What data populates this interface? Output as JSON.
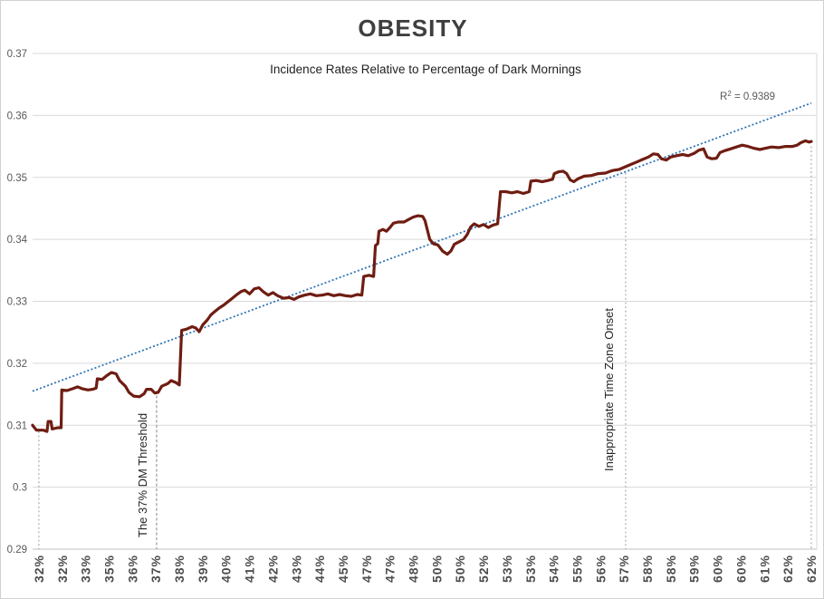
{
  "chart_data": {
    "type": "line",
    "title": "OBESITY",
    "subtitle": "Incidence Rates Relative to Percentage of Dark Mornings",
    "xlabel": "",
    "ylabel": "",
    "y_axis": {
      "min": 0.29,
      "max": 0.37,
      "step": 0.01,
      "tick_labels": [
        "0.29",
        "0.3",
        "0.31",
        "0.32",
        "0.33",
        "0.34",
        "0.35",
        "0.36",
        "0.37"
      ]
    },
    "x_axis": {
      "tick_labels": [
        "32%",
        "32%",
        "33%",
        "35%",
        "36%",
        "37%",
        "38%",
        "39%",
        "40%",
        "41%",
        "42%",
        "43%",
        "44%",
        "45%",
        "47%",
        "47%",
        "48%",
        "50%",
        "50%",
        "52%",
        "53%",
        "53%",
        "54%",
        "55%",
        "56%",
        "57%",
        "58%",
        "58%",
        "59%",
        "60%",
        "60%",
        "61%",
        "62%",
        "62%"
      ]
    },
    "grid": true,
    "legend": false,
    "series": [
      {
        "color": "#6F1D12",
        "points": [
          [
            -0.27,
            0.31
          ],
          [
            -0.1,
            0.3092
          ],
          [
            0.2,
            0.3092
          ],
          [
            0.35,
            0.309
          ],
          [
            0.4,
            0.3106
          ],
          [
            0.52,
            0.3106
          ],
          [
            0.57,
            0.3094
          ],
          [
            0.8,
            0.3096
          ],
          [
            0.95,
            0.3096
          ],
          [
            0.98,
            0.3157
          ],
          [
            1.2,
            0.3156
          ],
          [
            1.45,
            0.3159
          ],
          [
            1.65,
            0.3162
          ],
          [
            1.85,
            0.3159
          ],
          [
            2.1,
            0.3157
          ],
          [
            2.3,
            0.3158
          ],
          [
            2.45,
            0.316
          ],
          [
            2.5,
            0.3175
          ],
          [
            2.7,
            0.3174
          ],
          [
            2.9,
            0.318
          ],
          [
            3.1,
            0.3185
          ],
          [
            3.3,
            0.3183
          ],
          [
            3.45,
            0.3172
          ],
          [
            3.7,
            0.3163
          ],
          [
            3.85,
            0.3153
          ],
          [
            4.05,
            0.3147
          ],
          [
            4.3,
            0.3146
          ],
          [
            4.5,
            0.3151
          ],
          [
            4.6,
            0.3158
          ],
          [
            4.8,
            0.3158
          ],
          [
            4.95,
            0.3152
          ],
          [
            5.1,
            0.3153
          ],
          [
            5.25,
            0.3163
          ],
          [
            5.5,
            0.3167
          ],
          [
            5.65,
            0.3172
          ],
          [
            5.85,
            0.3169
          ],
          [
            6.0,
            0.3165
          ],
          [
            6.1,
            0.3253
          ],
          [
            6.3,
            0.3255
          ],
          [
            6.55,
            0.3259
          ],
          [
            6.7,
            0.3257
          ],
          [
            6.85,
            0.3251
          ],
          [
            7.0,
            0.3262
          ],
          [
            7.2,
            0.327
          ],
          [
            7.35,
            0.3278
          ],
          [
            7.5,
            0.3283
          ],
          [
            7.7,
            0.3289
          ],
          [
            7.9,
            0.3294
          ],
          [
            8.1,
            0.33
          ],
          [
            8.3,
            0.3306
          ],
          [
            8.5,
            0.3312
          ],
          [
            8.65,
            0.3316
          ],
          [
            8.8,
            0.3318
          ],
          [
            9.0,
            0.3312
          ],
          [
            9.2,
            0.332
          ],
          [
            9.4,
            0.3322
          ],
          [
            9.6,
            0.3315
          ],
          [
            9.8,
            0.331
          ],
          [
            10.0,
            0.3314
          ],
          [
            10.2,
            0.3309
          ],
          [
            10.45,
            0.3305
          ],
          [
            10.7,
            0.3306
          ],
          [
            10.9,
            0.3303
          ],
          [
            11.1,
            0.3307
          ],
          [
            11.35,
            0.331
          ],
          [
            11.6,
            0.3312
          ],
          [
            11.85,
            0.3309
          ],
          [
            12.1,
            0.331
          ],
          [
            12.35,
            0.3312
          ],
          [
            12.6,
            0.3309
          ],
          [
            12.85,
            0.3311
          ],
          [
            13.1,
            0.3309
          ],
          [
            13.35,
            0.3308
          ],
          [
            13.6,
            0.3311
          ],
          [
            13.8,
            0.331
          ],
          [
            13.88,
            0.334
          ],
          [
            14.1,
            0.3342
          ],
          [
            14.3,
            0.334
          ],
          [
            14.38,
            0.339
          ],
          [
            14.48,
            0.3393
          ],
          [
            14.53,
            0.3413
          ],
          [
            14.7,
            0.3416
          ],
          [
            14.85,
            0.3413
          ],
          [
            15.0,
            0.3419
          ],
          [
            15.15,
            0.3426
          ],
          [
            15.35,
            0.3428
          ],
          [
            15.6,
            0.3428
          ],
          [
            15.8,
            0.3432
          ],
          [
            16.0,
            0.3436
          ],
          [
            16.2,
            0.3438
          ],
          [
            16.4,
            0.3437
          ],
          [
            16.5,
            0.343
          ],
          [
            16.6,
            0.3415
          ],
          [
            16.7,
            0.34
          ],
          [
            16.85,
            0.3393
          ],
          [
            17.05,
            0.3391
          ],
          [
            17.25,
            0.3381
          ],
          [
            17.45,
            0.3376
          ],
          [
            17.6,
            0.3381
          ],
          [
            17.75,
            0.3392
          ],
          [
            17.95,
            0.3396
          ],
          [
            18.15,
            0.34
          ],
          [
            18.3,
            0.3408
          ],
          [
            18.45,
            0.342
          ],
          [
            18.6,
            0.3425
          ],
          [
            18.8,
            0.3421
          ],
          [
            19.0,
            0.3424
          ],
          [
            19.2,
            0.3419
          ],
          [
            19.4,
            0.3423
          ],
          [
            19.6,
            0.3425
          ],
          [
            19.72,
            0.3477
          ],
          [
            19.95,
            0.3477
          ],
          [
            20.2,
            0.3475
          ],
          [
            20.45,
            0.3477
          ],
          [
            20.7,
            0.3474
          ],
          [
            20.95,
            0.3477
          ],
          [
            21.02,
            0.3494
          ],
          [
            21.25,
            0.3495
          ],
          [
            21.5,
            0.3493
          ],
          [
            21.75,
            0.3495
          ],
          [
            21.95,
            0.3497
          ],
          [
            22.02,
            0.3506
          ],
          [
            22.2,
            0.3509
          ],
          [
            22.4,
            0.351
          ],
          [
            22.55,
            0.3506
          ],
          [
            22.7,
            0.3496
          ],
          [
            22.85,
            0.3493
          ],
          [
            23.05,
            0.3498
          ],
          [
            23.3,
            0.3502
          ],
          [
            23.6,
            0.3503
          ],
          [
            23.9,
            0.3506
          ],
          [
            24.2,
            0.3507
          ],
          [
            24.5,
            0.3511
          ],
          [
            24.8,
            0.3513
          ],
          [
            25.05,
            0.3517
          ],
          [
            25.3,
            0.3521
          ],
          [
            25.55,
            0.3525
          ],
          [
            25.8,
            0.3529
          ],
          [
            26.05,
            0.3533
          ],
          [
            26.25,
            0.3538
          ],
          [
            26.45,
            0.3537
          ],
          [
            26.6,
            0.353
          ],
          [
            26.8,
            0.3528
          ],
          [
            27.0,
            0.3533
          ],
          [
            27.25,
            0.3535
          ],
          [
            27.5,
            0.3537
          ],
          [
            27.75,
            0.3535
          ],
          [
            28.0,
            0.3539
          ],
          [
            28.2,
            0.3544
          ],
          [
            28.4,
            0.3546
          ],
          [
            28.55,
            0.3533
          ],
          [
            28.75,
            0.353
          ],
          [
            28.95,
            0.3531
          ],
          [
            29.1,
            0.354
          ],
          [
            29.3,
            0.3543
          ],
          [
            29.55,
            0.3546
          ],
          [
            29.8,
            0.3549
          ],
          [
            30.05,
            0.3552
          ],
          [
            30.3,
            0.355
          ],
          [
            30.55,
            0.3547
          ],
          [
            30.8,
            0.3545
          ],
          [
            31.05,
            0.3547
          ],
          [
            31.3,
            0.3549
          ],
          [
            31.6,
            0.3548
          ],
          [
            31.9,
            0.355
          ],
          [
            32.2,
            0.355
          ],
          [
            32.4,
            0.3552
          ],
          [
            32.55,
            0.3556
          ],
          [
            32.75,
            0.3559
          ],
          [
            32.9,
            0.3557
          ],
          [
            33.0,
            0.3558
          ]
        ]
      }
    ],
    "trendline": {
      "r_squared": 0.9389,
      "r2": {
        "prefix": "R",
        "sup": "2",
        "rest": " = 0.9389"
      },
      "color": "#2E74B5",
      "points": [
        [
          -0.27,
          0.3155
        ],
        [
          33.0,
          0.362
        ]
      ]
    },
    "annotations": [
      {
        "label": "The 37% DM Threshold",
        "x": 5.03,
        "v_top": 0.3156,
        "style": "dashed"
      },
      {
        "label": "Inappropriate Time Zone Onset",
        "x": 25.07,
        "v_top": 0.3507,
        "style": "dotted"
      },
      {
        "label": "",
        "x": 0.0,
        "v_top": 0.309,
        "style": "dotted"
      },
      {
        "label": "",
        "x": 33.0,
        "v_top": 0.355,
        "style": "dotted"
      }
    ],
    "colors": {
      "series": "#6F1D12",
      "trendline": "#2E74B5",
      "gridline": "#D9D9D9",
      "baseline": "#BFBFBF",
      "plot_border": "#D9D9D9",
      "axis_labels": "#595959",
      "x_labels": "#4D4D4D",
      "title": "#3F3F3F",
      "subtitle": "#1F1F1F",
      "annotation_text": "#262626",
      "annotation_line_dotted": "#A6A6A6",
      "annotation_line_dashed": "#999999",
      "r2_text": "#595959"
    }
  }
}
